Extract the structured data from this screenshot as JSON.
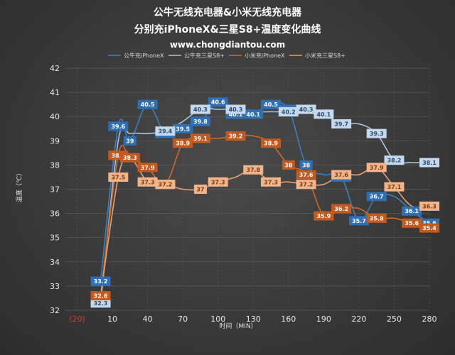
{
  "chart_data": {
    "type": "line",
    "title": "公牛无线充电器&小米无线充电器",
    "subtitle": "分别充iPhoneX&三星S8+温度变化曲线",
    "url": "www.chongdiantou.com",
    "xlabel": "时间（MIN）",
    "ylabel": "温度（℃）",
    "x_ticks": [
      "(20)",
      "10",
      "40",
      "70",
      "100",
      "130",
      "160",
      "190",
      "220",
      "250",
      "280"
    ],
    "ylim": [
      32,
      42
    ],
    "y_ticks": [
      32,
      33,
      34,
      35,
      36,
      37,
      38,
      39,
      40,
      41,
      42
    ],
    "grid": true,
    "legend_position": "top",
    "series": [
      {
        "name": "公牛充iPhoneX",
        "color": "#3d7fc4",
        "label_fill": "#2f6fb5",
        "label_text_color": "#ffffff",
        "x": [
          0,
          15,
          25,
          40,
          55,
          70,
          85,
          100,
          115,
          130,
          145,
          160,
          175,
          190,
          205,
          220,
          235,
          250,
          265,
          280
        ],
        "y": [
          33.2,
          39.6,
          39,
          40.5,
          39.3,
          39.5,
          39.8,
          40.6,
          40.1,
          40.1,
          40.5,
          40.3,
          38,
          37.6,
          37.5,
          35.7,
          36.7,
          36.7,
          36.1,
          35.6
        ],
        "labels": [
          "33.2",
          "39.6",
          "39",
          "40.5",
          "39.3",
          "39.5",
          "39.8",
          "40.6",
          "40.1",
          "40.1",
          "40.5",
          "40.3",
          "38",
          "",
          "37.5",
          "35.7",
          "36.7",
          "",
          "36.1",
          "35.6"
        ]
      },
      {
        "name": "公牛充三星S8+",
        "color": "#a8c4e0",
        "label_fill": "#c5d9ee",
        "label_text_color": "#2b4a6b",
        "x": [
          0,
          15,
          25,
          40,
          55,
          70,
          85,
          100,
          115,
          130,
          145,
          160,
          175,
          190,
          205,
          220,
          235,
          250,
          265,
          280
        ],
        "y": [
          32.3,
          39,
          39.3,
          39.3,
          39.4,
          39.8,
          40.3,
          40.3,
          40.3,
          40.2,
          40.2,
          40.2,
          40.3,
          40.1,
          39.7,
          39.7,
          39.3,
          38.2,
          38.1,
          38.1
        ],
        "labels": [
          "32.3",
          "",
          "",
          "",
          "39.4",
          "",
          "40.3",
          "",
          "40.3",
          "",
          "",
          "40.2",
          "40.3",
          "40.1",
          "39.7",
          "",
          "39.3",
          "38.2",
          "",
          "38.1"
        ]
      },
      {
        "name": "小米充iPhoneX",
        "color": "#d06a28",
        "label_fill": "#c55a1e",
        "label_text_color": "#ffffff",
        "x": [
          0,
          15,
          25,
          40,
          55,
          70,
          85,
          100,
          115,
          130,
          145,
          160,
          175,
          190,
          205,
          220,
          235,
          250,
          265,
          280
        ],
        "y": [
          32.6,
          38.4,
          38.3,
          37.9,
          37.2,
          38.9,
          39.1,
          39.1,
          39.2,
          39.2,
          38.9,
          38,
          37.6,
          35.9,
          36.2,
          36.2,
          35.8,
          35.8,
          35.6,
          35.4
        ],
        "labels": [
          "32.6",
          "38.4",
          "38.3",
          "37.9",
          "37.2",
          "38.9",
          "39.1",
          "",
          "39.2",
          "",
          "38.9",
          "38",
          "37.6",
          "35.9",
          "36.2",
          "",
          "35.8",
          "",
          "35.6",
          "35.4"
        ]
      },
      {
        "name": "小米充三星S8+",
        "color": "#e8a070",
        "label_fill": "#f2b58a",
        "label_text_color": "#7a3a10",
        "x": [
          0,
          15,
          25,
          40,
          55,
          70,
          85,
          100,
          115,
          130,
          145,
          160,
          175,
          190,
          205,
          220,
          235,
          250,
          265,
          280
        ],
        "y": [
          32.6,
          37.5,
          38.3,
          37.3,
          37.2,
          37,
          37,
          37.3,
          37.5,
          37.8,
          37.3,
          37.3,
          37.2,
          37.2,
          37.6,
          37.6,
          37.9,
          37.1,
          36.3,
          36.3
        ],
        "labels": [
          "",
          "37.5",
          "",
          "37.3",
          "37.2",
          "",
          "37",
          "37.3",
          "",
          "37.8",
          "37.3",
          "",
          "37.2",
          "",
          "37.6",
          "",
          "37.9",
          "37.1",
          "",
          "36.3"
        ]
      }
    ]
  }
}
